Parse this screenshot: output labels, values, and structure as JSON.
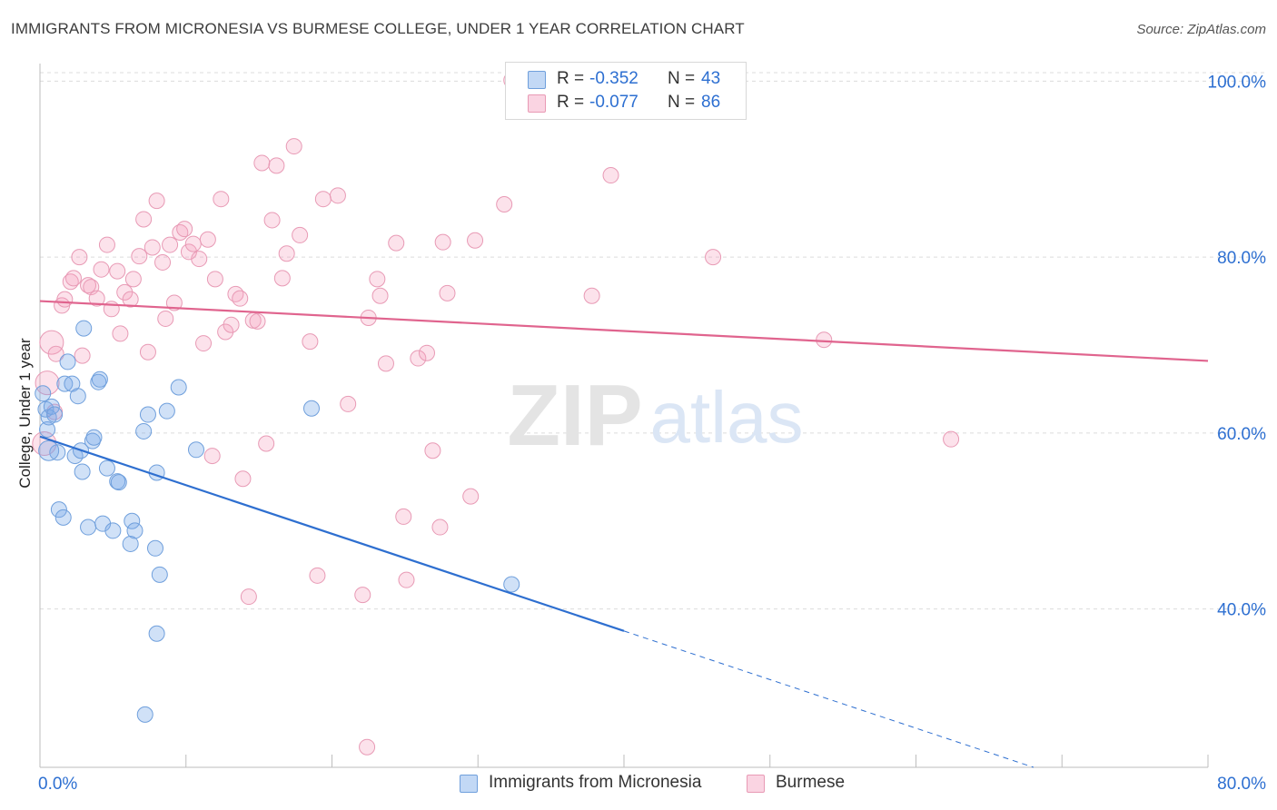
{
  "title": "IMMIGRANTS FROM MICRONESIA VS BURMESE COLLEGE, UNDER 1 YEAR CORRELATION CHART",
  "source": "Source: ZipAtlas.com",
  "watermark": {
    "zip": "ZIP",
    "atlas": "atlas"
  },
  "legend": {
    "r_label": "R =",
    "n_label": "N =",
    "series1": {
      "r": "-0.352",
      "n": "43"
    },
    "series2": {
      "r": "-0.077",
      "n": "86"
    }
  },
  "bottom_legend": {
    "series1": "Immigrants from Micronesia",
    "series2": "Burmese"
  },
  "colors": {
    "blue_fill": "rgba(120,168,232,0.35)",
    "blue_stroke": "#6f9fdc",
    "blue_line": "#2e6fd0",
    "pink_fill": "rgba(244,160,190,0.30)",
    "pink_stroke": "#e89ab5",
    "pink_line": "#e0648e",
    "axis_text": "#2d6fd1"
  },
  "chart_data": {
    "type": "scatter",
    "title": "IMMIGRANTS FROM MICRONESIA VS BURMESE COLLEGE, UNDER 1 YEAR CORRELATION CHART",
    "xlabel": "",
    "ylabel": "College, Under 1 year",
    "xlim": [
      0,
      80
    ],
    "ylim": [
      22,
      102
    ],
    "x_tick_labels": [
      {
        "value": 0,
        "label": "0.0%"
      },
      {
        "value": 80,
        "label": "80.0%"
      }
    ],
    "y_tick_labels": [
      {
        "value": 100,
        "label": "100.0%"
      },
      {
        "value": 80,
        "label": "80.0%"
      },
      {
        "value": 60,
        "label": "60.0%"
      },
      {
        "value": 40,
        "label": "40.0%"
      }
    ],
    "grid": true,
    "series": [
      {
        "name": "Immigrants from Micronesia",
        "r": -0.352,
        "n": 43,
        "trend": {
          "x0": 0,
          "y0": 59.6,
          "x1": 40,
          "y1": 37.5,
          "dashed_to_x": 80,
          "dashed_to_y": 15.4
        },
        "points": [
          [
            0.2,
            64.5
          ],
          [
            0.4,
            62.7
          ],
          [
            0.5,
            60.4
          ],
          [
            0.6,
            61.8
          ],
          [
            0.8,
            63.0
          ],
          [
            1.0,
            62.1
          ],
          [
            1.2,
            57.8
          ],
          [
            1.3,
            51.3
          ],
          [
            1.6,
            50.4
          ],
          [
            1.7,
            65.6
          ],
          [
            1.9,
            68.1
          ],
          [
            2.2,
            65.6
          ],
          [
            2.4,
            57.4
          ],
          [
            2.6,
            64.2
          ],
          [
            2.8,
            58.0
          ],
          [
            2.9,
            55.6
          ],
          [
            3.0,
            71.9
          ],
          [
            3.3,
            49.3
          ],
          [
            3.6,
            59.1
          ],
          [
            3.7,
            59.5
          ],
          [
            4.0,
            65.8
          ],
          [
            4.1,
            66.1
          ],
          [
            4.3,
            49.7
          ],
          [
            4.6,
            56.0
          ],
          [
            5.0,
            48.9
          ],
          [
            5.3,
            54.5
          ],
          [
            5.4,
            54.4
          ],
          [
            6.2,
            47.4
          ],
          [
            6.3,
            50.0
          ],
          [
            6.5,
            48.9
          ],
          [
            7.1,
            60.2
          ],
          [
            7.4,
            62.1
          ],
          [
            7.9,
            46.9
          ],
          [
            8.0,
            55.5
          ],
          [
            8.2,
            43.9
          ],
          [
            8.7,
            62.5
          ],
          [
            9.5,
            65.2
          ],
          [
            10.7,
            58.1
          ],
          [
            18.6,
            62.8
          ],
          [
            32.3,
            42.8
          ],
          [
            7.2,
            28.0
          ],
          [
            8.0,
            37.2
          ],
          [
            0.6,
            58.0
          ]
        ]
      },
      {
        "name": "Burmese",
        "r": -0.077,
        "n": 86,
        "trend": {
          "x0": 0,
          "y0": 75.0,
          "x1": 80,
          "y1": 68.2
        },
        "points": [
          [
            0.5,
            65.7
          ],
          [
            0.8,
            70.3
          ],
          [
            1.1,
            69.0
          ],
          [
            1.5,
            74.5
          ],
          [
            1.7,
            75.2
          ],
          [
            2.1,
            77.2
          ],
          [
            2.3,
            77.6
          ],
          [
            2.7,
            80.0
          ],
          [
            2.9,
            68.8
          ],
          [
            3.3,
            76.8
          ],
          [
            3.5,
            76.6
          ],
          [
            3.9,
            75.3
          ],
          [
            4.2,
            78.6
          ],
          [
            4.6,
            81.4
          ],
          [
            4.9,
            74.1
          ],
          [
            5.3,
            78.4
          ],
          [
            5.5,
            71.3
          ],
          [
            5.8,
            76.0
          ],
          [
            6.2,
            75.2
          ],
          [
            6.4,
            77.5
          ],
          [
            6.8,
            80.1
          ],
          [
            7.1,
            84.3
          ],
          [
            7.4,
            69.2
          ],
          [
            7.7,
            81.1
          ],
          [
            8.0,
            86.4
          ],
          [
            8.4,
            79.4
          ],
          [
            8.6,
            73.0
          ],
          [
            8.9,
            81.4
          ],
          [
            9.2,
            74.8
          ],
          [
            9.6,
            82.8
          ],
          [
            9.9,
            83.2
          ],
          [
            10.2,
            80.6
          ],
          [
            10.5,
            81.5
          ],
          [
            10.9,
            79.8
          ],
          [
            11.2,
            70.2
          ],
          [
            11.5,
            82.0
          ],
          [
            11.8,
            57.4
          ],
          [
            12.0,
            77.5
          ],
          [
            12.4,
            86.6
          ],
          [
            12.7,
            71.5
          ],
          [
            13.1,
            72.3
          ],
          [
            13.4,
            75.8
          ],
          [
            13.7,
            75.3
          ],
          [
            13.9,
            54.8
          ],
          [
            14.3,
            41.4
          ],
          [
            14.6,
            72.8
          ],
          [
            14.9,
            72.7
          ],
          [
            15.2,
            90.7
          ],
          [
            15.5,
            58.8
          ],
          [
            15.9,
            84.2
          ],
          [
            16.2,
            90.4
          ],
          [
            16.6,
            77.6
          ],
          [
            16.9,
            80.4
          ],
          [
            17.4,
            92.6
          ],
          [
            17.8,
            82.5
          ],
          [
            18.5,
            70.4
          ],
          [
            19.0,
            43.8
          ],
          [
            19.4,
            86.6
          ],
          [
            20.4,
            87.0
          ],
          [
            21.1,
            63.3
          ],
          [
            22.1,
            41.6
          ],
          [
            22.4,
            24.3
          ],
          [
            22.5,
            73.1
          ],
          [
            23.1,
            77.5
          ],
          [
            23.3,
            75.6
          ],
          [
            23.7,
            67.9
          ],
          [
            24.4,
            81.6
          ],
          [
            24.9,
            50.5
          ],
          [
            25.1,
            43.3
          ],
          [
            25.9,
            68.5
          ],
          [
            26.5,
            69.1
          ],
          [
            26.9,
            58.0
          ],
          [
            27.4,
            49.3
          ],
          [
            27.6,
            81.7
          ],
          [
            27.9,
            75.9
          ],
          [
            29.5,
            52.8
          ],
          [
            29.8,
            81.9
          ],
          [
            31.8,
            86.0
          ],
          [
            32.3,
            100.1
          ],
          [
            37.8,
            75.6
          ],
          [
            39.1,
            89.3
          ],
          [
            46.1,
            80.0
          ],
          [
            53.7,
            70.6
          ],
          [
            62.4,
            59.3
          ],
          [
            0.3,
            58.8
          ],
          [
            1.0,
            62.4
          ]
        ]
      }
    ]
  }
}
